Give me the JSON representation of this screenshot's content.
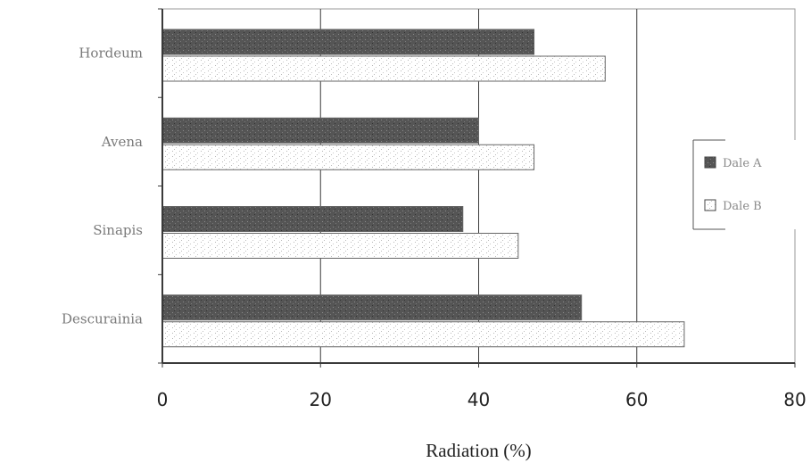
{
  "chart_data": {
    "type": "bar",
    "orientation": "horizontal",
    "categories": [
      "Hordeum",
      "Avena",
      "Sinapis",
      "Descurainia"
    ],
    "series": [
      {
        "name": "Dale A",
        "color": "#555555",
        "pattern": "dark-speckled",
        "values": [
          47,
          40,
          38,
          53
        ]
      },
      {
        "name": "Dale B",
        "color": "#ffffff",
        "pattern": "white-speckled",
        "values": [
          56,
          47,
          45,
          66
        ]
      }
    ],
    "xlabel": "Radiation (%)",
    "ylabel": "",
    "xlim": [
      0,
      80
    ],
    "x_ticks": [
      "0",
      "20",
      "40",
      "60",
      "80"
    ],
    "grid": true,
    "legend_position": "right"
  }
}
